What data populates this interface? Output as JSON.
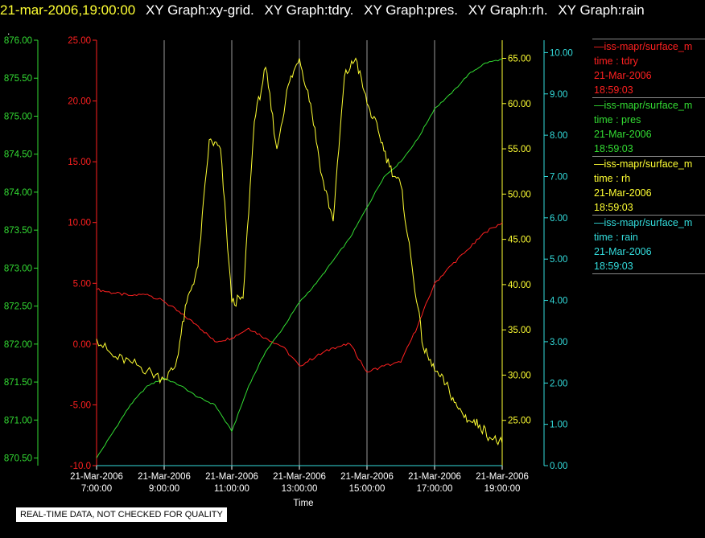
{
  "header": {
    "timestamp": "21-mar-2006,19:00:00",
    "graph_titles": [
      "XY Graph:xy-grid.",
      "XY Graph:tdry.",
      "XY Graph:pres.",
      "XY Graph:rh.",
      "XY Graph:rain"
    ]
  },
  "marker": ".",
  "banner": "REAL-TIME DATA, NOT CHECKED FOR QUALITY",
  "legend": [
    {
      "line1": "—iss-mapr/surface_m",
      "line2": "time : tdry",
      "line3": "21-Mar-2006",
      "line4": "18:59:03",
      "color": "#ff2020"
    },
    {
      "line1": "—iss-mapr/surface_m",
      "line2": "time : pres",
      "line3": "21-Mar-2006",
      "line4": "18:59:03",
      "color": "#33dd33"
    },
    {
      "line1": "—iss-mapr/surface_m",
      "line2": "time : rh",
      "line3": "21-Mar-2006",
      "line4": "18:59:03",
      "color": "#ffff33"
    },
    {
      "line1": "—iss-mapr/surface_m",
      "line2": "time : rain",
      "line3": "21-Mar-2006",
      "line4": "18:59:03",
      "color": "#33dddd"
    }
  ],
  "chart_data": {
    "type": "line",
    "xlabel": "Time",
    "x_ticks": [
      {
        "hour": 7,
        "date": "21-Mar-2006",
        "time": "7:00:00"
      },
      {
        "hour": 9,
        "date": "21-Mar-2006",
        "time": "9:00:00"
      },
      {
        "hour": 11,
        "date": "21-Mar-2006",
        "time": "11:00:00"
      },
      {
        "hour": 13,
        "date": "21-Mar-2006",
        "time": "13:00:00"
      },
      {
        "hour": 15,
        "date": "21-Mar-2006",
        "time": "15:00:00"
      },
      {
        "hour": 17,
        "date": "21-Mar-2006",
        "time": "17:00:00"
      },
      {
        "hour": 19,
        "date": "21-Mar-2006",
        "time": "19:00:00"
      }
    ],
    "xlim": [
      "21-Mar-2006 07:00:00",
      "21-Mar-2006 19:00:00"
    ],
    "grid": "vertical",
    "axes": [
      {
        "id": "pres",
        "side": "left-outer",
        "color": "#33dd33",
        "ylim": [
          870.4,
          876.0
        ],
        "ticks": [
          "870.50",
          "871.00",
          "871.50",
          "872.00",
          "872.50",
          "873.00",
          "873.50",
          "874.00",
          "874.50",
          "875.00",
          "875.50",
          "876.00"
        ]
      },
      {
        "id": "tdry",
        "side": "left-inner",
        "color": "#ff2020",
        "ylim": [
          -10.0,
          25.0
        ],
        "ticks": [
          "-10.0",
          "-5.00",
          "0.00",
          "5.00",
          "10.00",
          "15.00",
          "20.00",
          "25.00"
        ]
      },
      {
        "id": "rh",
        "side": "right-inner",
        "color": "#ffff33",
        "ylim": [
          20.0,
          67.0
        ],
        "ticks": [
          "25.00",
          "30.00",
          "35.00",
          "40.00",
          "45.00",
          "50.00",
          "55.00",
          "60.00",
          "65.00"
        ]
      },
      {
        "id": "rain",
        "side": "right-outer",
        "color": "#33dddd",
        "ylim": [
          0.0,
          10.3
        ],
        "ticks": [
          "0.00",
          "1.00",
          "2.00",
          "3.00",
          "4.00",
          "5.00",
          "6.00",
          "7.00",
          "8.00",
          "9.00",
          "10.00"
        ]
      }
    ],
    "series": [
      {
        "name": "tdry",
        "axis": "tdry",
        "color": "#ff2020",
        "x": [
          "07:00",
          "07:30",
          "08:00",
          "08:30",
          "09:00",
          "09:30",
          "10:00",
          "10:30",
          "11:00",
          "11:30",
          "12:00",
          "12:30",
          "13:00",
          "13:30",
          "14:00",
          "14:30",
          "15:00",
          "15:30",
          "16:00",
          "16:30",
          "17:00",
          "17:30",
          "18:00",
          "18:30",
          "19:00"
        ],
        "values": [
          4.5,
          4.2,
          4.0,
          4.1,
          3.5,
          2.5,
          1.5,
          0.2,
          0.5,
          1.3,
          0.5,
          -0.2,
          -1.8,
          -1.0,
          -0.3,
          0.0,
          -2.3,
          -1.8,
          -1.5,
          1.5,
          5.0,
          6.5,
          7.8,
          9.2,
          10.0
        ]
      },
      {
        "name": "pres",
        "axis": "pres",
        "color": "#33dd33",
        "x": [
          "07:00",
          "07:30",
          "08:00",
          "08:30",
          "09:00",
          "09:30",
          "10:00",
          "10:30",
          "11:00",
          "11:30",
          "12:00",
          "12:30",
          "13:00",
          "13:30",
          "14:00",
          "14:30",
          "15:00",
          "15:30",
          "16:00",
          "16:30",
          "17:00",
          "17:30",
          "18:00",
          "18:30",
          "19:00"
        ],
        "values": [
          870.5,
          870.85,
          871.2,
          871.45,
          871.55,
          871.45,
          871.3,
          871.2,
          870.85,
          871.45,
          871.9,
          872.2,
          872.55,
          872.8,
          873.1,
          873.4,
          873.8,
          874.2,
          874.4,
          874.7,
          875.1,
          875.3,
          875.55,
          875.7,
          875.75
        ]
      },
      {
        "name": "rh",
        "axis": "rh",
        "color": "#ffff33",
        "x": [
          "07:00",
          "07:30",
          "08:00",
          "08:30",
          "09:00",
          "09:20",
          "09:40",
          "10:00",
          "10:20",
          "10:40",
          "11:00",
          "11:20",
          "11:40",
          "12:00",
          "12:20",
          "12:40",
          "13:00",
          "13:20",
          "13:40",
          "14:00",
          "14:20",
          "14:40",
          "15:00",
          "15:20",
          "15:40",
          "16:00",
          "16:20",
          "16:40",
          "17:00",
          "17:20",
          "17:40",
          "18:00",
          "18:20",
          "18:40",
          "19:00"
        ],
        "values": [
          34.0,
          32.0,
          31.5,
          30.5,
          29.5,
          31.0,
          38.0,
          42.0,
          56.0,
          55.0,
          38.0,
          38.5,
          58.0,
          64.0,
          55.0,
          62.0,
          65.0,
          60.0,
          52.0,
          47.0,
          63.0,
          65.0,
          60.0,
          57.0,
          53.0,
          51.0,
          42.0,
          33.0,
          30.5,
          29.0,
          26.5,
          25.0,
          24.5,
          23.0,
          22.5
        ]
      },
      {
        "name": "rain",
        "axis": "rain",
        "color": "#33dddd",
        "x": [
          "07:00",
          "19:00"
        ],
        "values": [
          0.0,
          0.0
        ]
      }
    ]
  }
}
